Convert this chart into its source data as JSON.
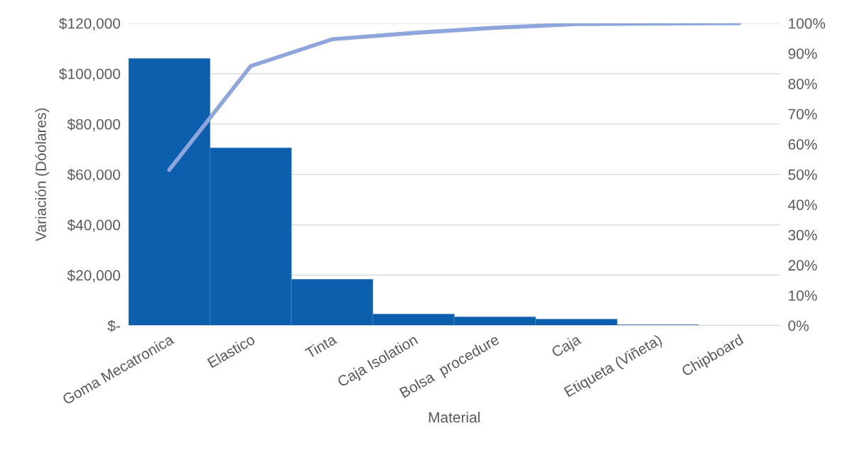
{
  "chart_data": {
    "type": "bar",
    "xlabel": "Material",
    "ylabel": "Variación (Dóolares)",
    "categories": [
      "Goma Mecatronica",
      "Elastico",
      "Tinta",
      "Caja Isolation",
      "Bolsa  procedure",
      "Caja",
      "Etiqueta (Viñeta)",
      "Chipboard"
    ],
    "series": [
      {
        "color": "#0b5fad",
        "values": [
          106000,
          70500,
          18300,
          4500,
          3400,
          2500,
          300,
          null
        ]
      },
      {
        "type": "line",
        "axis": "y2",
        "color": "#8ea6dc",
        "values": [
          51.5,
          85.8,
          94.7,
          96.8,
          98.5,
          99.7,
          99.9,
          100
        ]
      }
    ],
    "ylim": [
      0,
      120000
    ],
    "yticks": [
      {
        "value": 0,
        "label": "$-"
      },
      {
        "value": 20000,
        "label": "$20,000"
      },
      {
        "value": 40000,
        "label": "$40,000"
      },
      {
        "value": 60000,
        "label": "$60,000"
      },
      {
        "value": 80000,
        "label": "$80,000"
      },
      {
        "value": 100000,
        "label": "$100,000"
      },
      {
        "value": 120000,
        "label": "$120,000"
      }
    ],
    "y2lim": [
      0,
      100
    ],
    "y2ticks": [
      {
        "value": 0,
        "label": "0%"
      },
      {
        "value": 10,
        "label": "10%"
      },
      {
        "value": 20,
        "label": "20%"
      },
      {
        "value": 30,
        "label": "30%"
      },
      {
        "value": 40,
        "label": "40%"
      },
      {
        "value": 50,
        "label": "50%"
      },
      {
        "value": 60,
        "label": "60%"
      },
      {
        "value": 70,
        "label": "70%"
      },
      {
        "value": 80,
        "label": "80%"
      },
      {
        "value": 90,
        "label": "90%"
      },
      {
        "value": 100,
        "label": "100%"
      }
    ],
    "grid": "y"
  }
}
